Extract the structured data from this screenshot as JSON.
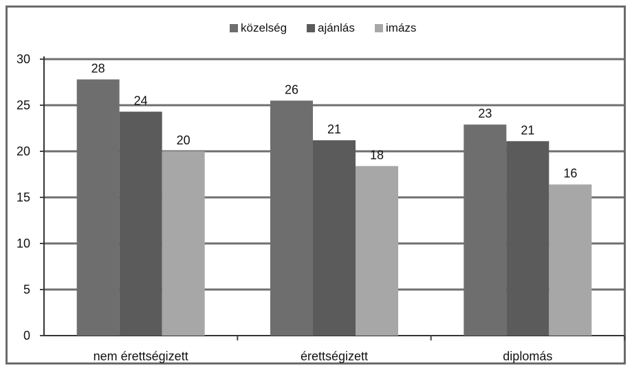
{
  "chart_data": {
    "type": "bar",
    "categories": [
      "nem érettségizett",
      "érettségizett",
      "diplomás"
    ],
    "series": [
      {
        "name": "közelség",
        "values": [
          27.8,
          25.5,
          22.9
        ],
        "labels": [
          "28",
          "26",
          "23"
        ],
        "color": "#6e6e6e"
      },
      {
        "name": "ajánlás",
        "values": [
          24.3,
          21.2,
          21.1
        ],
        "labels": [
          "24",
          "21",
          "21"
        ],
        "color": "#5b5b5b"
      },
      {
        "name": "imázs",
        "values": [
          20.0,
          18.4,
          16.4
        ],
        "labels": [
          "20",
          "18",
          "16"
        ],
        "color": "#a7a7a7"
      }
    ],
    "yticks": [
      "0",
      "5",
      "10",
      "15",
      "20",
      "25",
      "30"
    ],
    "ylim": [
      0,
      30
    ],
    "grid": true,
    "legend_position": "top-center",
    "title": "",
    "xlabel": "",
    "ylabel": ""
  }
}
